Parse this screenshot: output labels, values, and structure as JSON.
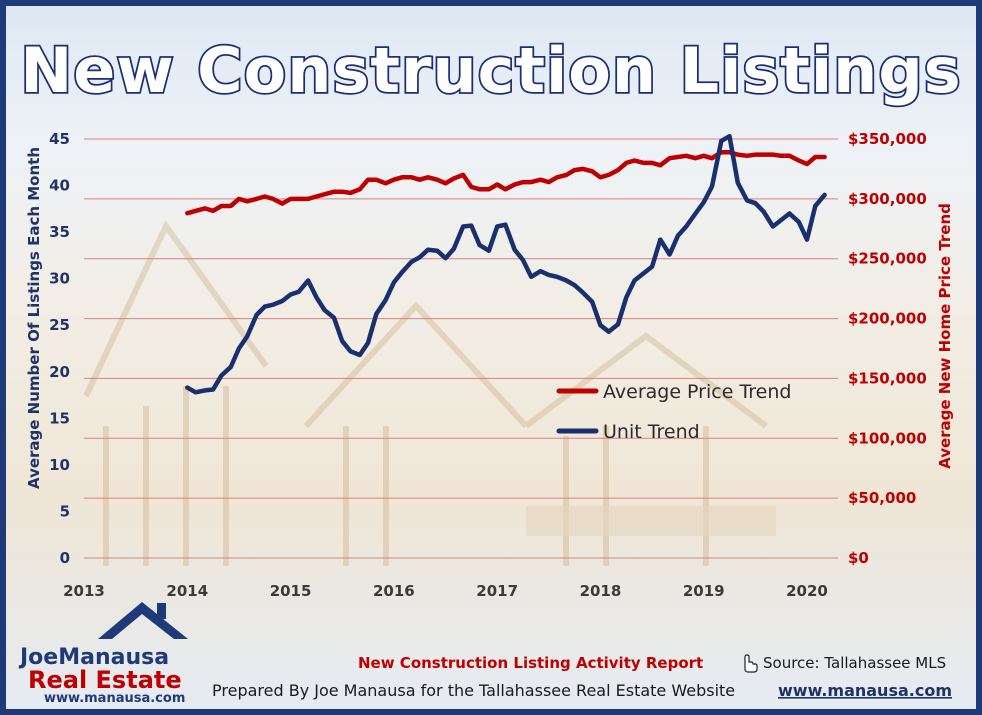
{
  "chart_data": {
    "type": "line",
    "title": "New Construction Listings",
    "x_ticks": [
      "2013",
      "2014",
      "2015",
      "2016",
      "2017",
      "2018",
      "2019",
      "2020"
    ],
    "xlim": [
      2013,
      2020.3
    ],
    "y_left": {
      "label": "Average Number Of Listings Each Month",
      "lim": [
        0,
        45
      ],
      "ticks": [
        "0",
        "5",
        "10",
        "15",
        "20",
        "25",
        "30",
        "35",
        "40",
        "45"
      ]
    },
    "y_right": {
      "label": "Average New Home Price Trend",
      "lim": [
        0,
        350000
      ],
      "ticks": [
        "$0",
        "$50,000",
        "$100,000",
        "$150,000",
        "$200,000",
        "$250,000",
        "$300,000",
        "$350,000"
      ]
    },
    "grid": true,
    "legend_position": "center-right",
    "series": [
      {
        "name": "Average Price Trend",
        "axis": "right",
        "color": "#c00000",
        "x": [
          2014.0,
          2014.17,
          2014.25,
          2014.33,
          2014.42,
          2014.5,
          2014.58,
          2014.67,
          2014.75,
          2014.83,
          2014.92,
          2015.0,
          2015.08,
          2015.17,
          2015.25,
          2015.42,
          2015.5,
          2015.58,
          2015.67,
          2015.75,
          2015.83,
          2015.92,
          2016.0,
          2016.08,
          2016.17,
          2016.25,
          2016.33,
          2016.42,
          2016.5,
          2016.58,
          2016.67,
          2016.75,
          2016.83,
          2016.92,
          2017.0,
          2017.08,
          2017.17,
          2017.25,
          2017.33,
          2017.42,
          2017.5,
          2017.58,
          2017.67,
          2017.75,
          2017.83,
          2017.92,
          2018.0,
          2018.08,
          2018.17,
          2018.25,
          2018.33,
          2018.42,
          2018.5,
          2018.58,
          2018.67,
          2018.75,
          2018.83,
          2018.92,
          2019.0,
          2019.08,
          2019.17,
          2019.25,
          2019.33,
          2019.42,
          2019.5,
          2019.58,
          2019.67,
          2019.75,
          2019.83,
          2019.92,
          2020.0,
          2020.08,
          2020.17
        ],
        "values": [
          288000,
          292000,
          290000,
          294000,
          294000,
          300000,
          298000,
          300000,
          302000,
          300000,
          296000,
          300000,
          300000,
          300000,
          302000,
          306000,
          306000,
          305000,
          308000,
          316000,
          316000,
          313000,
          316000,
          318000,
          318000,
          316000,
          318000,
          316000,
          313000,
          317000,
          320000,
          310000,
          308000,
          308000,
          312000,
          308000,
          312000,
          314000,
          314000,
          316000,
          314000,
          318000,
          320000,
          324000,
          325000,
          323000,
          318000,
          320000,
          324000,
          330000,
          332000,
          330000,
          330000,
          328000,
          334000,
          335000,
          336000,
          334000,
          336000,
          334000,
          339000,
          339000,
          337000,
          336000,
          337000,
          337000,
          337000,
          336000,
          336000,
          332000,
          329000,
          335000,
          335000
        ]
      },
      {
        "name": "Unit Trend",
        "axis": "left",
        "color": "#1a2f6e",
        "x": [
          2014.0,
          2014.08,
          2014.17,
          2014.25,
          2014.33,
          2014.42,
          2014.5,
          2014.58,
          2014.67,
          2014.75,
          2014.83,
          2014.92,
          2015.0,
          2015.08,
          2015.17,
          2015.25,
          2015.33,
          2015.42,
          2015.5,
          2015.58,
          2015.67,
          2015.75,
          2015.83,
          2015.92,
          2016.0,
          2016.08,
          2016.17,
          2016.25,
          2016.33,
          2016.42,
          2016.5,
          2016.58,
          2016.67,
          2016.75,
          2016.83,
          2016.92,
          2017.0,
          2017.08,
          2017.17,
          2017.25,
          2017.33,
          2017.42,
          2017.5,
          2017.58,
          2017.67,
          2017.75,
          2017.83,
          2017.92,
          2018.0,
          2018.08,
          2018.17,
          2018.25,
          2018.33,
          2018.42,
          2018.5,
          2018.58,
          2018.67,
          2018.75,
          2018.83,
          2018.92,
          2019.0,
          2019.08,
          2019.17,
          2019.25,
          2019.33,
          2019.42,
          2019.5,
          2019.58,
          2019.67,
          2019.75,
          2019.83,
          2019.92,
          2020.0,
          2020.08,
          2020.17
        ],
        "values": [
          18.3,
          17.8,
          18.0,
          18.1,
          19.6,
          20.5,
          22.5,
          23.8,
          26.1,
          27.0,
          27.2,
          27.6,
          28.3,
          28.6,
          29.8,
          28.0,
          26.6,
          25.8,
          23.3,
          22.2,
          21.8,
          23.1,
          26.2,
          27.7,
          29.6,
          30.7,
          31.8,
          32.3,
          33.1,
          33.0,
          32.2,
          33.2,
          35.6,
          35.7,
          33.6,
          33.0,
          35.6,
          35.8,
          33.1,
          32.0,
          30.2,
          30.8,
          30.4,
          30.2,
          29.8,
          29.3,
          28.5,
          27.5,
          25.0,
          24.3,
          25.1,
          28.0,
          29.8,
          30.6,
          31.3,
          34.2,
          32.6,
          34.6,
          35.6,
          37.0,
          38.2,
          39.9,
          44.8,
          45.3,
          40.3,
          38.4,
          38.1,
          37.2,
          35.6,
          36.3,
          37.0,
          36.1,
          34.2,
          37.8,
          39.0
        ]
      }
    ]
  },
  "footer": {
    "report_title": "New Construction Listing Activity Report",
    "source": "Source: Tallahassee MLS",
    "prepared_by": "Prepared By Joe Manausa for the Tallahassee Real Estate Website",
    "website": "www.manausa.com"
  },
  "logo": {
    "name": "JoeManausa",
    "subtitle": "Real Estate",
    "url": "www.manausa.com"
  }
}
